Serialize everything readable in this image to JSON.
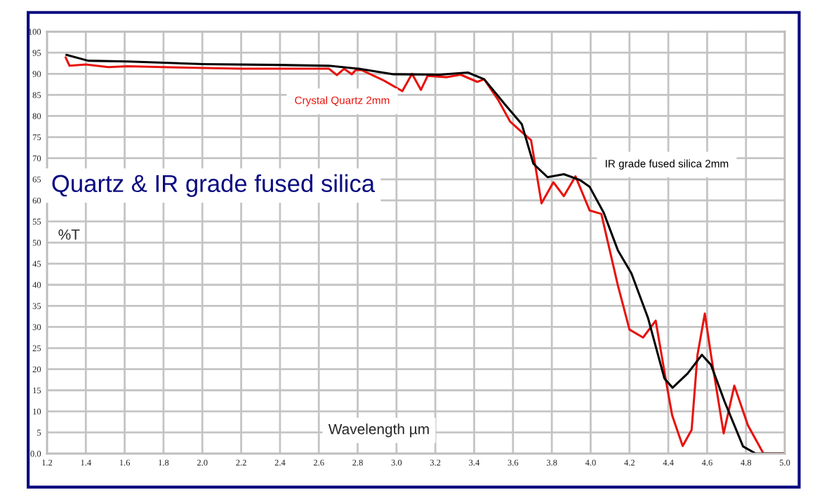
{
  "chart_data": {
    "type": "line",
    "title": "Quartz & IR grade fused silica",
    "xlabel": "Wavelength µm",
    "ylabel": "%T",
    "series": [
      {
        "name": "Crystal Quartz 2mm",
        "color": "#e8120c",
        "x": [
          1.296,
          1.316,
          1.4,
          1.516,
          1.615,
          1.876,
          2.2,
          2.652,
          2.693,
          2.73,
          2.77,
          2.79,
          2.82,
          2.935,
          3.03,
          3.08,
          3.126,
          3.16,
          3.26,
          3.33,
          3.416,
          3.452,
          3.525,
          3.585,
          3.633,
          3.693,
          3.747,
          3.808,
          3.862,
          3.922,
          3.995,
          4.055,
          4.14,
          4.2,
          4.27,
          4.335,
          4.39,
          4.42,
          4.474,
          4.52,
          4.55,
          4.588,
          4.62,
          4.685,
          4.74,
          4.81,
          4.89,
          5.0
        ],
        "values": [
          93.9,
          91.9,
          92.2,
          91.6,
          91.8,
          91.5,
          91.2,
          91.2,
          89.7,
          91.2,
          89.9,
          90.9,
          90.9,
          88.4,
          85.9,
          90,
          86.2,
          89.5,
          89.2,
          89.8,
          88.1,
          88.7,
          83.7,
          78.7,
          76.7,
          74.3,
          59.3,
          64.3,
          61,
          65.7,
          57.6,
          56.8,
          39.9,
          29.4,
          27.5,
          31.5,
          16.7,
          9,
          1.8,
          5.6,
          23.3,
          33.2,
          23.3,
          4.8,
          16.1,
          6.7,
          0,
          0
        ]
      },
      {
        "name": "IR grade fused silica 2mm",
        "color": "#000000",
        "x": [
          1.3,
          1.412,
          1.62,
          2.01,
          2.39,
          2.652,
          2.805,
          2.985,
          3.223,
          3.368,
          3.452,
          3.561,
          3.645,
          3.705,
          3.778,
          3.862,
          3.946,
          3.995,
          4.067,
          4.14,
          4.21,
          4.295,
          4.38,
          4.422,
          4.5,
          4.573,
          4.62,
          4.69,
          4.785,
          4.85,
          5.0
        ],
        "values": [
          94.5,
          93.1,
          92.9,
          92.3,
          92.1,
          91.9,
          91.2,
          89.9,
          89.8,
          90.3,
          88.7,
          82.6,
          78.1,
          68.7,
          65.5,
          66.2,
          64.8,
          63.2,
          57.1,
          48.2,
          42.7,
          32.2,
          17.8,
          15.6,
          19,
          23.4,
          21,
          12.3,
          1.7,
          0,
          0
        ]
      }
    ],
    "xlim": [
      1.2,
      5.0
    ],
    "xticks": [
      {
        "value": 1.2,
        "label": "1.2"
      },
      {
        "value": 1.4,
        "label": "1.4"
      },
      {
        "value": 1.6,
        "label": "1.6"
      },
      {
        "value": 1.8,
        "label": "1.8"
      },
      {
        "value": 2,
        "label": "2.0"
      },
      {
        "value": 2.2,
        "label": "2.2"
      },
      {
        "value": 2.4,
        "label": "2.4"
      },
      {
        "value": 2.6,
        "label": "2.6"
      },
      {
        "value": 2.8,
        "label": "2.8"
      },
      {
        "value": 3,
        "label": "3.0"
      },
      {
        "value": 3.2,
        "label": "3.2"
      },
      {
        "value": 3.4,
        "label": "3.4"
      },
      {
        "value": 3.6,
        "label": "3.6"
      },
      {
        "value": 3.8,
        "label": "3.8"
      },
      {
        "value": 4,
        "label": "4.0"
      },
      {
        "value": 4.2,
        "label": "4.2"
      },
      {
        "value": 4.4,
        "label": "4.4"
      },
      {
        "value": 4.6,
        "label": "4.6"
      },
      {
        "value": 4.8,
        "label": "4.8"
      },
      {
        "value": 5,
        "label": "5.0"
      }
    ],
    "ylim": [
      0,
      100
    ],
    "yticks": [
      {
        "value": 0,
        "label": "0.0"
      },
      5,
      10,
      15,
      20,
      25,
      30,
      35,
      40,
      45,
      50,
      55,
      60,
      65,
      70,
      75,
      80,
      85,
      90,
      95,
      100
    ],
    "grid": true,
    "legend": false,
    "marker": "none",
    "line_style": "solid"
  }
}
